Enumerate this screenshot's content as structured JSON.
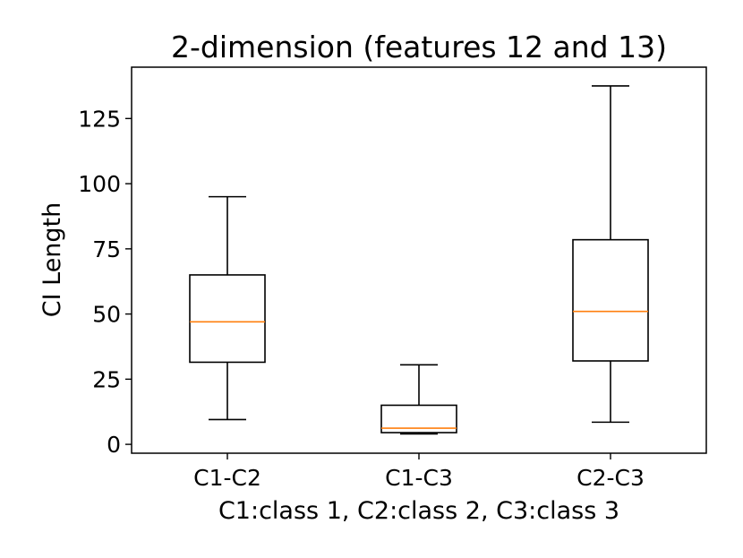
{
  "chart_data": {
    "type": "box",
    "title": "2-dimension (features 12 and 13)",
    "xlabel": "C1:class 1, C2:class 2, C3:class 3",
    "ylabel": "CI Length",
    "categories": [
      "C1-C2",
      "C1-C3",
      "C2-C3"
    ],
    "boxes": [
      {
        "whisker_low": 9.5,
        "q1": 31.5,
        "median": 47,
        "q3": 65,
        "whisker_high": 95
      },
      {
        "whisker_low": 4,
        "q1": 4.5,
        "median": 6.2,
        "q3": 15,
        "whisker_high": 30.5
      },
      {
        "whisker_low": 8.5,
        "q1": 32,
        "median": 51,
        "q3": 78.5,
        "whisker_high": 137.5
      }
    ],
    "ylim": [
      -3.4,
      144.7
    ],
    "yticks": [
      0,
      25,
      50,
      75,
      100,
      125
    ],
    "grid": false,
    "colors": {
      "box": "#000000",
      "median": "#ff7f0e",
      "axes": "#000000"
    }
  }
}
